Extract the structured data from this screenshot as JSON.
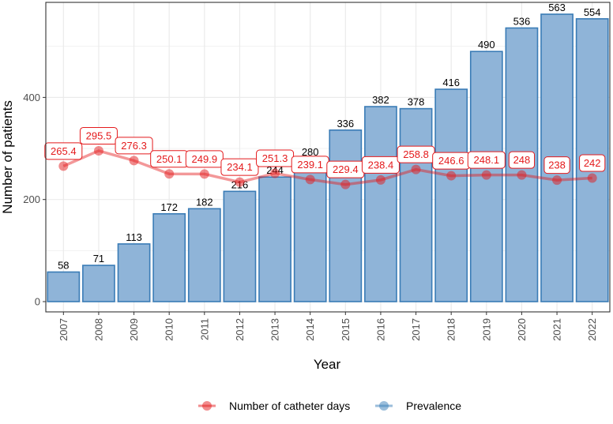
{
  "chart_data": {
    "type": "bar",
    "xlabel": "Year",
    "ylabel": "Number of patients",
    "ylim": [
      0,
      563
    ],
    "y_ticks": [
      0,
      200,
      400
    ],
    "grid": true,
    "legend_position": "bottom",
    "categories": [
      "2007",
      "2008",
      "2009",
      "2010",
      "2011",
      "2012",
      "2013",
      "2014",
      "2015",
      "2016",
      "2017",
      "2018",
      "2019",
      "2020",
      "2021",
      "2022"
    ],
    "series": [
      {
        "name": "Prevalence",
        "kind": "bar",
        "color": "#377eb8",
        "values": [
          58,
          71,
          113,
          172,
          182,
          216,
          244,
          280,
          336,
          382,
          378,
          416,
          490,
          536,
          563,
          554
        ],
        "labels": [
          "58",
          "71",
          "113",
          "172",
          "182",
          "216",
          "244",
          "280",
          "336",
          "382",
          "378",
          "416",
          "490",
          "536",
          "563",
          "554"
        ]
      },
      {
        "name": "Number of catheter days",
        "kind": "line",
        "color": "#e41a1c",
        "values": [
          265.4,
          295.5,
          276.3,
          250.1,
          249.9,
          234.1,
          251.3,
          239.1,
          229.4,
          238.4,
          258.8,
          246.6,
          248.1,
          248,
          238,
          242
        ],
        "labels": [
          "265.4",
          "295.5",
          "276.3",
          "250.1",
          "249.9",
          "234.1",
          "251.3",
          "239.1",
          "229.4",
          "238.4",
          "258.8",
          "246.6",
          "248.1",
          "248",
          "238",
          "242"
        ]
      }
    ]
  }
}
